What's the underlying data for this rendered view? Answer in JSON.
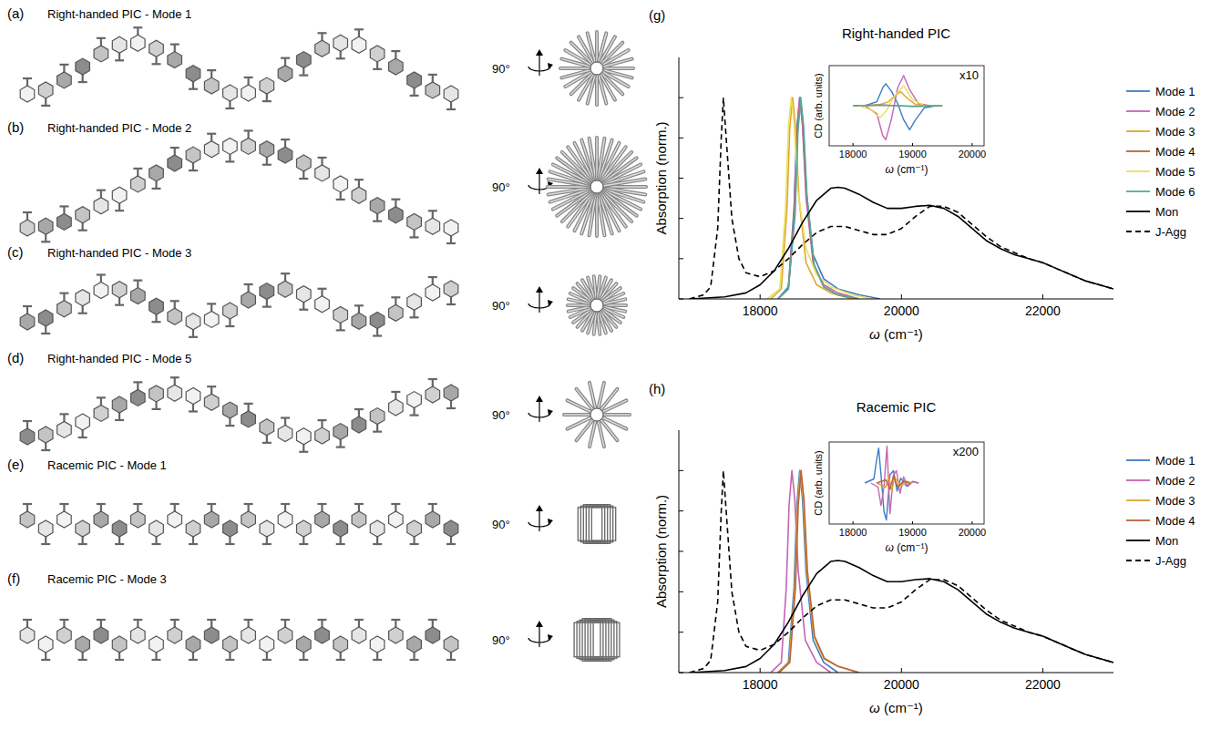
{
  "structures": [
    {
      "letter": "(a)",
      "title": "Right-handed PIC - Mode 1",
      "rotation": "90°"
    },
    {
      "letter": "(b)",
      "title": "Right-handed PIC - Mode 2",
      "rotation": "90°"
    },
    {
      "letter": "(c)",
      "title": "Right-handed PIC - Mode 3",
      "rotation": "90°"
    },
    {
      "letter": "(d)",
      "title": "Right-handed PIC - Mode 5",
      "rotation": "90°"
    },
    {
      "letter": "(e)",
      "title": "Racemic PIC - Mode 1",
      "rotation": "90°"
    },
    {
      "letter": "(f)",
      "title": "Racemic PIC - Mode 3",
      "rotation": "90°"
    }
  ],
  "chart_data": [
    {
      "type": "line",
      "panel": "(g)",
      "title": "Right-handed PIC",
      "x_label": "ω (cm⁻¹)",
      "y_label": "Absorption (norm.)",
      "xlim": [
        16850,
        23000
      ],
      "xticks": [
        18000,
        20000,
        22000
      ],
      "ylim": [
        0,
        1.2
      ],
      "yticks": [
        0,
        0.2,
        0.4,
        0.6,
        0.8,
        1
      ],
      "tick_labels": "x",
      "legend": "right",
      "series": [
        {
          "name": "Mode 1",
          "color": "#3b7cc4",
          "line_style": "solid",
          "x": [
            18250,
            18400,
            18480,
            18520,
            18560,
            18600,
            18650,
            18750,
            18900,
            19100,
            19400,
            19700
          ],
          "values": [
            0,
            0.06,
            0.45,
            0.85,
            1.0,
            0.88,
            0.55,
            0.22,
            0.1,
            0.05,
            0.02,
            0
          ]
        },
        {
          "name": "Mode 2",
          "color": "#c464b4",
          "line_style": "solid",
          "x": [
            18250,
            18400,
            18480,
            18520,
            18560,
            18600,
            18650,
            18750,
            18900,
            19100,
            19400
          ],
          "values": [
            0,
            0.05,
            0.42,
            0.83,
            1.0,
            0.86,
            0.5,
            0.18,
            0.07,
            0.03,
            0
          ]
        },
        {
          "name": "Mode 3",
          "color": "#e2a52b",
          "line_style": "solid",
          "x": [
            18150,
            18300,
            18380,
            18420,
            18460,
            18500,
            18550,
            18650,
            18800,
            19000,
            19300
          ],
          "values": [
            0,
            0.05,
            0.45,
            0.85,
            1.0,
            0.86,
            0.5,
            0.18,
            0.07,
            0.03,
            0
          ]
        },
        {
          "name": "Mode 4",
          "color": "#b8643a",
          "line_style": "solid",
          "x": [
            18250,
            18400,
            18490,
            18530,
            18570,
            18610,
            18660,
            18760,
            18900,
            19100,
            19400
          ],
          "values": [
            0,
            0.05,
            0.42,
            0.83,
            1.0,
            0.86,
            0.5,
            0.17,
            0.06,
            0.02,
            0
          ]
        },
        {
          "name": "Mode 5",
          "color": "#ebdf5e",
          "line_style": "solid",
          "x": [
            18100,
            18280,
            18360,
            18400,
            18440,
            18480,
            18530,
            18650,
            18800,
            19000,
            19300,
            19600
          ],
          "values": [
            0,
            0.05,
            0.45,
            0.85,
            1.0,
            0.88,
            0.55,
            0.25,
            0.12,
            0.06,
            0.02,
            0
          ]
        },
        {
          "name": "Mode 6",
          "color": "#52ab9b",
          "line_style": "solid",
          "x": [
            18250,
            18400,
            18495,
            18535,
            18575,
            18615,
            18665,
            18765,
            18900,
            19100,
            19400
          ],
          "values": [
            0,
            0.05,
            0.42,
            0.83,
            1.0,
            0.86,
            0.5,
            0.17,
            0.06,
            0.02,
            0
          ]
        },
        {
          "name": "Mon",
          "color": "#000000",
          "line_style": "solid",
          "x": [
            17000,
            17500,
            17800,
            18000,
            18200,
            18400,
            18600,
            18800,
            19000,
            19100,
            19200,
            19400,
            19600,
            19800,
            20000,
            20200,
            20400,
            20600,
            20800,
            21000,
            21200,
            21400,
            21600,
            21800,
            22000,
            22200,
            22400,
            22600,
            22800,
            23000
          ],
          "values": [
            0,
            0.01,
            0.03,
            0.07,
            0.14,
            0.25,
            0.38,
            0.49,
            0.55,
            0.555,
            0.55,
            0.52,
            0.48,
            0.45,
            0.45,
            0.46,
            0.465,
            0.45,
            0.41,
            0.35,
            0.29,
            0.25,
            0.22,
            0.2,
            0.18,
            0.15,
            0.12,
            0.09,
            0.07,
            0.05
          ]
        },
        {
          "name": "J-Agg",
          "color": "#000000",
          "line_style": "dashed",
          "x": [
            17000,
            17200,
            17300,
            17400,
            17450,
            17480,
            17520,
            17600,
            17700,
            17800,
            18000,
            18200,
            18400,
            18600,
            18800,
            19000,
            19200,
            19400,
            19600,
            19800,
            20000,
            20200,
            20400,
            20600,
            20800,
            21000,
            21200,
            21400,
            21600,
            21800,
            22000,
            22200,
            22400,
            22600,
            22800,
            23000
          ],
          "values": [
            0,
            0.02,
            0.06,
            0.35,
            0.8,
            1.0,
            0.8,
            0.4,
            0.2,
            0.13,
            0.11,
            0.14,
            0.2,
            0.27,
            0.33,
            0.36,
            0.36,
            0.34,
            0.32,
            0.32,
            0.35,
            0.41,
            0.46,
            0.46,
            0.43,
            0.37,
            0.31,
            0.26,
            0.23,
            0.2,
            0.18,
            0.15,
            0.12,
            0.09,
            0.07,
            0.05
          ]
        }
      ],
      "inset": {
        "type": "line",
        "annotation": "x10",
        "x_label": "ω (cm⁻¹)",
        "y_label": "CD (arb. units)",
        "xlim": [
          17600,
          20200
        ],
        "xticks": [
          18000,
          19000,
          20000
        ],
        "ylim": [
          -1,
          1
        ],
        "tick_labels": "x",
        "series": [
          {
            "name": "Mode 1",
            "color": "#3b7cc4",
            "line_style": "solid",
            "x": [
              18200,
              18400,
              18500,
              18550,
              18650,
              18750,
              18850,
              18950,
              19050,
              19200,
              19400
            ],
            "values": [
              0,
              0.1,
              0.45,
              0.55,
              0.35,
              0.05,
              -0.35,
              -0.6,
              -0.35,
              -0.05,
              0
            ]
          },
          {
            "name": "Mode 2",
            "color": "#c464b4",
            "line_style": "solid",
            "x": [
              18200,
              18400,
              18500,
              18550,
              18650,
              18750,
              18850,
              18950,
              19100,
              19300
            ],
            "values": [
              0,
              -0.2,
              -0.75,
              -0.85,
              -0.3,
              0.45,
              0.75,
              0.4,
              0.05,
              0
            ]
          },
          {
            "name": "Mode 3",
            "color": "#e2a52b",
            "line_style": "solid",
            "x": [
              18200,
              18450,
              18600,
              18700,
              18800,
              18900,
              19050,
              19300
            ],
            "values": [
              0,
              0.03,
              0.1,
              0.25,
              0.35,
              0.2,
              0.03,
              0
            ]
          },
          {
            "name": "Mode 4",
            "color": "#b8643a",
            "line_style": "solid",
            "x": [
              18000,
              18500,
              19000,
              19500
            ],
            "values": [
              0,
              0.02,
              -0.02,
              0
            ]
          },
          {
            "name": "Mode 5",
            "color": "#ebdf5e",
            "line_style": "solid",
            "x": [
              18100,
              18300,
              18450,
              18550,
              18700,
              18850,
              19000,
              19200
            ],
            "values": [
              0,
              -0.1,
              -0.3,
              -0.15,
              0.25,
              0.5,
              0.15,
              0
            ]
          },
          {
            "name": "Mode 6",
            "color": "#52ab9b",
            "line_style": "solid",
            "x": [
              18000,
              18500,
              19000,
              19500
            ],
            "values": [
              0,
              0.01,
              -0.01,
              0
            ]
          }
        ]
      }
    },
    {
      "type": "line",
      "panel": "(h)",
      "title": "Racemic PIC",
      "x_label": "ω (cm⁻¹)",
      "y_label": "Absorption (norm.)",
      "xlim": [
        16850,
        23000
      ],
      "xticks": [
        18000,
        20000,
        22000
      ],
      "ylim": [
        0,
        1.2
      ],
      "yticks": [
        0,
        0.2,
        0.4,
        0.6,
        0.8,
        1
      ],
      "tick_labels": "x",
      "legend": "right",
      "series": [
        {
          "name": "Mode 1",
          "color": "#3b7cc4",
          "line_style": "solid",
          "x": [
            18250,
            18400,
            18480,
            18520,
            18560,
            18600,
            18650,
            18750,
            18900,
            19100
          ],
          "values": [
            0,
            0.05,
            0.42,
            0.83,
            1.0,
            0.86,
            0.5,
            0.16,
            0.05,
            0
          ]
        },
        {
          "name": "Mode 2",
          "color": "#c464b4",
          "line_style": "solid",
          "x": [
            18150,
            18300,
            18370,
            18410,
            18450,
            18490,
            18540,
            18640,
            18800,
            19000
          ],
          "values": [
            0,
            0.05,
            0.42,
            0.83,
            1.0,
            0.86,
            0.5,
            0.16,
            0.05,
            0
          ]
        },
        {
          "name": "Mode 3",
          "color": "#e2a52b",
          "line_style": "solid",
          "x": [
            18260,
            18410,
            18490,
            18530,
            18570,
            18610,
            18660,
            18760,
            18900,
            19100,
            19400
          ],
          "values": [
            0,
            0.05,
            0.42,
            0.83,
            1.0,
            0.86,
            0.5,
            0.18,
            0.07,
            0.03,
            0
          ]
        },
        {
          "name": "Mode 4",
          "color": "#b8643a",
          "line_style": "solid",
          "x": [
            18270,
            18420,
            18500,
            18540,
            18580,
            18620,
            18670,
            18770,
            18910,
            19110,
            19400
          ],
          "values": [
            0,
            0.05,
            0.42,
            0.83,
            1.0,
            0.86,
            0.5,
            0.18,
            0.07,
            0.03,
            0
          ]
        },
        {
          "name": "Mon",
          "color": "#000000",
          "line_style": "solid",
          "x": [
            17000,
            17500,
            17800,
            18000,
            18200,
            18400,
            18600,
            18800,
            19000,
            19100,
            19200,
            19400,
            19600,
            19800,
            20000,
            20200,
            20400,
            20600,
            20800,
            21000,
            21200,
            21400,
            21600,
            21800,
            22000,
            22200,
            22400,
            22600,
            22800,
            23000
          ],
          "values": [
            0,
            0.01,
            0.03,
            0.07,
            0.14,
            0.25,
            0.38,
            0.49,
            0.55,
            0.555,
            0.55,
            0.52,
            0.48,
            0.45,
            0.45,
            0.46,
            0.465,
            0.45,
            0.41,
            0.35,
            0.29,
            0.25,
            0.22,
            0.2,
            0.18,
            0.15,
            0.12,
            0.09,
            0.07,
            0.05
          ]
        },
        {
          "name": "J-Agg",
          "color": "#000000",
          "line_style": "dashed",
          "x": [
            17000,
            17200,
            17300,
            17400,
            17450,
            17480,
            17520,
            17600,
            17700,
            17800,
            18000,
            18200,
            18400,
            18600,
            18800,
            19000,
            19200,
            19400,
            19600,
            19800,
            20000,
            20200,
            20400,
            20600,
            20800,
            21000,
            21200,
            21400,
            21600,
            21800,
            22000,
            22200,
            22400,
            22600,
            22800,
            23000
          ],
          "values": [
            0,
            0.02,
            0.06,
            0.35,
            0.8,
            1.0,
            0.8,
            0.4,
            0.2,
            0.13,
            0.11,
            0.14,
            0.2,
            0.27,
            0.33,
            0.36,
            0.36,
            0.34,
            0.32,
            0.32,
            0.35,
            0.41,
            0.46,
            0.46,
            0.43,
            0.37,
            0.31,
            0.26,
            0.23,
            0.2,
            0.18,
            0.15,
            0.12,
            0.09,
            0.07,
            0.05
          ]
        }
      ],
      "inset": {
        "type": "line",
        "annotation": "x200",
        "x_label": "ω (cm⁻¹)",
        "y_label": "CD (arb. units)",
        "xlim": [
          17600,
          20200
        ],
        "xticks": [
          18000,
          19000,
          20000
        ],
        "ylim": [
          -1,
          1
        ],
        "tick_labels": "x",
        "series": [
          {
            "name": "Mode 1",
            "color": "#3b7cc4",
            "line_style": "solid",
            "x": [
              18200,
              18350,
              18400,
              18430,
              18470,
              18520,
              18560,
              18620,
              18680,
              18740,
              18800,
              18900,
              19000,
              19100
            ],
            "values": [
              0,
              0.1,
              0.6,
              0.85,
              0.2,
              -0.7,
              -0.9,
              0.2,
              0.3,
              -0.2,
              0.12,
              -0.08,
              0.04,
              0
            ]
          },
          {
            "name": "Mode 2",
            "color": "#c464b4",
            "line_style": "solid",
            "x": [
              18300,
              18420,
              18470,
              18520,
              18570,
              18620,
              18680,
              18730,
              18790,
              18850,
              18920,
              19000,
              19100
            ],
            "values": [
              0,
              -0.1,
              -0.55,
              -0.1,
              0.9,
              -0.75,
              0.2,
              0.3,
              -0.25,
              0.15,
              -0.08,
              0.03,
              0
            ]
          },
          {
            "name": "Mode 3",
            "color": "#e2a52b",
            "line_style": "solid",
            "x": [
              18400,
              18550,
              18600,
              18650,
              18700,
              18800,
              18900,
              19000
            ],
            "values": [
              0,
              -0.1,
              0.15,
              -0.2,
              0.15,
              -0.08,
              0.04,
              0
            ]
          },
          {
            "name": "Mode 4",
            "color": "#b8643a",
            "line_style": "solid",
            "x": [
              18400,
              18550,
              18620,
              18680,
              18750,
              18850,
              18950
            ],
            "values": [
              0,
              0.08,
              -0.15,
              0.18,
              -0.1,
              0.05,
              0
            ]
          }
        ]
      }
    }
  ]
}
